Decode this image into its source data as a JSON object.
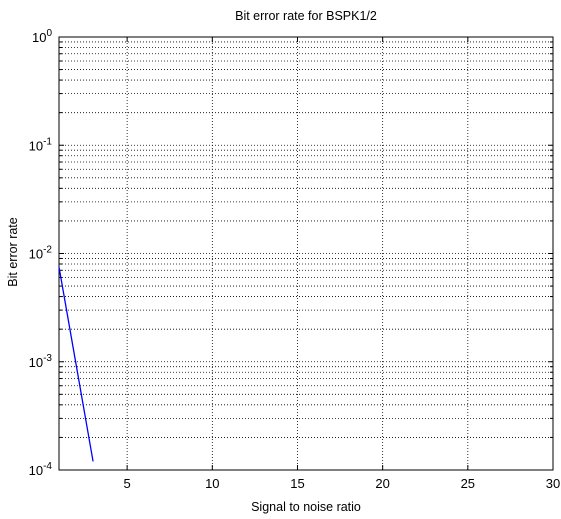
{
  "chart_data": {
    "type": "line",
    "title": "Bit error rate for BSPK1/2",
    "xlabel": "Signal to noise ratio",
    "ylabel": "Bit error rate",
    "xlim": [
      1,
      30
    ],
    "ylim": [
      0.0001,
      1
    ],
    "yscale": "log",
    "grid": true,
    "x_ticks": [
      5,
      10,
      15,
      20,
      25,
      30
    ],
    "y_ticks": [
      {
        "value": 0.0001,
        "base": "10",
        "exp": "-4"
      },
      {
        "value": 0.001,
        "base": "10",
        "exp": "-3"
      },
      {
        "value": 0.01,
        "base": "10",
        "exp": "-2"
      },
      {
        "value": 0.1,
        "base": "10",
        "exp": "-1"
      },
      {
        "value": 1,
        "base": "10",
        "exp": "0"
      }
    ],
    "series": [
      {
        "color": "#0000ff",
        "x": [
          1,
          2,
          3
        ],
        "y": [
          0.0075,
          0.00095,
          0.00012
        ]
      }
    ]
  }
}
